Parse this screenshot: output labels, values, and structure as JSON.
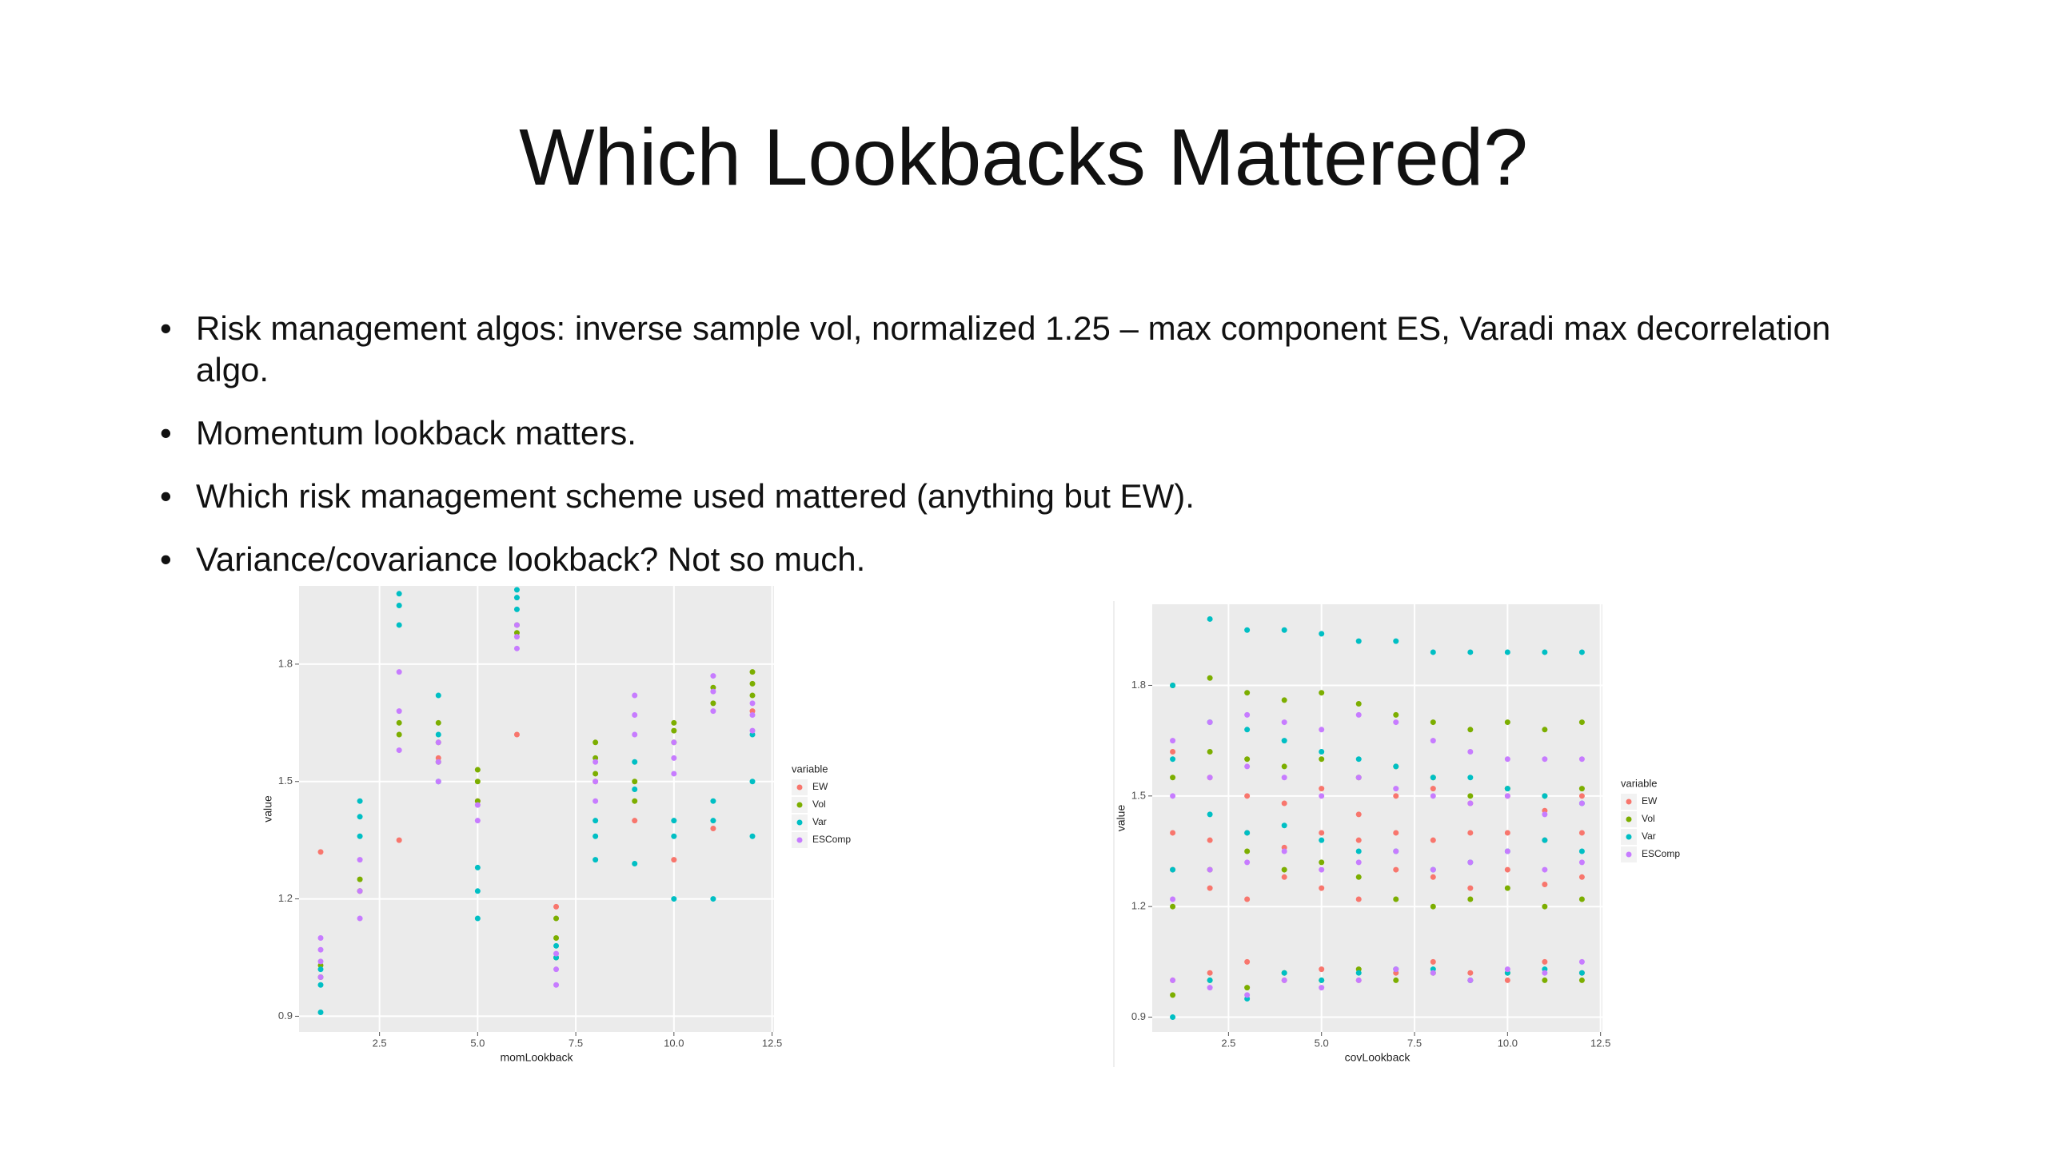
{
  "title": "Which Lookbacks Mattered?",
  "bullets": [
    "Risk management algos: inverse sample vol, normalized 1.25 – max component ES, Varadi max decorrelation algo.",
    "Momentum lookback matters.",
    "Which risk management scheme used mattered (anything but EW).",
    "Variance/covariance lookback? Not so much."
  ],
  "chart_data": [
    {
      "type": "scatter",
      "x_label": "momLookback",
      "y_label": "value",
      "legend_title": "variable",
      "xlim": [
        0.45,
        12.55
      ],
      "ylim": [
        0.86,
        2.0
      ],
      "xticks": [
        2.5,
        {
          "value": 5,
          "label": "5.0"
        },
        7.5,
        {
          "value": 10,
          "label": "10.0"
        },
        12.5
      ],
      "yticks": [
        0.9,
        1.2,
        1.5,
        1.8
      ],
      "grid": true,
      "series": [
        {
          "name": "EW",
          "color": "#F8766D",
          "x": [
            1,
            2,
            3,
            4,
            5,
            6,
            7,
            8,
            9,
            10,
            11,
            12
          ],
          "values": [
            1.32,
            1.22,
            1.35,
            1.56,
            1.45,
            1.62,
            1.18,
            1.5,
            1.4,
            1.3,
            1.38,
            1.68
          ]
        },
        {
          "name": "Vol",
          "color": "#7CAE00",
          "x": [
            1,
            1,
            2,
            2,
            3,
            3,
            4,
            4,
            4,
            5,
            5,
            5,
            6,
            6,
            7,
            7,
            7,
            8,
            8,
            8,
            9,
            9,
            10,
            10,
            10,
            11,
            11,
            12,
            12,
            12
          ],
          "values": [
            1.0,
            1.03,
            1.22,
            1.25,
            1.65,
            1.62,
            1.55,
            1.6,
            1.65,
            1.45,
            1.5,
            1.53,
            1.88,
            1.9,
            1.05,
            1.1,
            1.15,
            1.52,
            1.56,
            1.6,
            1.45,
            1.5,
            1.6,
            1.63,
            1.65,
            1.7,
            1.74,
            1.72,
            1.75,
            1.78
          ]
        },
        {
          "name": "Var",
          "color": "#00BFC4",
          "x": [
            1,
            1,
            1,
            2,
            2,
            2,
            3,
            3,
            3,
            4,
            4,
            4,
            5,
            5,
            5,
            6,
            6,
            6,
            7,
            7,
            8,
            8,
            8,
            9,
            9,
            9,
            10,
            10,
            10,
            11,
            11,
            11,
            12,
            12,
            12
          ],
          "values": [
            0.91,
            0.98,
            1.02,
            1.36,
            1.41,
            1.45,
            1.9,
            1.95,
            1.98,
            1.5,
            1.62,
            1.72,
            1.15,
            1.22,
            1.28,
            1.94,
            1.97,
            1.99,
            1.05,
            1.08,
            1.3,
            1.36,
            1.4,
            1.29,
            1.48,
            1.55,
            1.2,
            1.36,
            1.4,
            1.2,
            1.4,
            1.45,
            1.36,
            1.5,
            1.62
          ]
        },
        {
          "name": "ESComp",
          "color": "#C77CFF",
          "x": [
            1,
            1,
            1,
            1,
            2,
            2,
            2,
            3,
            3,
            3,
            4,
            4,
            4,
            5,
            5,
            6,
            6,
            6,
            7,
            7,
            7,
            8,
            8,
            8,
            9,
            9,
            9,
            10,
            10,
            10,
            11,
            11,
            11,
            12,
            12,
            12
          ],
          "values": [
            1.0,
            1.04,
            1.07,
            1.1,
            1.15,
            1.22,
            1.3,
            1.58,
            1.68,
            1.78,
            1.5,
            1.55,
            1.6,
            1.4,
            1.44,
            1.84,
            1.87,
            1.9,
            0.98,
            1.02,
            1.06,
            1.45,
            1.5,
            1.55,
            1.62,
            1.67,
            1.72,
            1.52,
            1.56,
            1.6,
            1.68,
            1.73,
            1.77,
            1.63,
            1.67,
            1.7
          ]
        }
      ]
    },
    {
      "type": "scatter",
      "x_label": "covLookback",
      "y_label": "value",
      "legend_title": "variable",
      "xlim": [
        0.45,
        12.55
      ],
      "ylim": [
        0.86,
        2.02
      ],
      "xticks": [
        2.5,
        {
          "value": 5,
          "label": "5.0"
        },
        7.5,
        {
          "value": 10,
          "label": "10.0"
        },
        12.5
      ],
      "yticks": [
        0.9,
        1.2,
        1.5,
        1.8
      ],
      "grid": true,
      "series": [
        {
          "name": "EW",
          "color": "#F8766D",
          "x": [
            1,
            1,
            1,
            1,
            2,
            2,
            2,
            2,
            3,
            3,
            3,
            3,
            4,
            4,
            4,
            4,
            5,
            5,
            5,
            5,
            6,
            6,
            6,
            6,
            7,
            7,
            7,
            7,
            8,
            8,
            8,
            8,
            9,
            9,
            9,
            9,
            10,
            10,
            10,
            10,
            11,
            11,
            11,
            11,
            12,
            12,
            12,
            12
          ],
          "values": [
            1.0,
            1.3,
            1.4,
            1.62,
            1.02,
            1.25,
            1.38,
            1.55,
            1.05,
            1.22,
            1.4,
            1.5,
            1.0,
            1.28,
            1.36,
            1.48,
            1.03,
            1.25,
            1.4,
            1.52,
            1.0,
            1.22,
            1.38,
            1.45,
            1.02,
            1.3,
            1.4,
            1.5,
            1.05,
            1.28,
            1.38,
            1.52,
            1.02,
            1.25,
            1.4,
            1.48,
            1.0,
            1.3,
            1.4,
            1.5,
            1.05,
            1.26,
            1.38,
            1.46,
            1.02,
            1.28,
            1.4,
            1.5
          ]
        },
        {
          "name": "Vol",
          "color": "#7CAE00",
          "x": [
            1,
            1,
            1,
            1,
            2,
            2,
            2,
            2,
            3,
            3,
            3,
            3,
            4,
            4,
            4,
            4,
            5,
            5,
            5,
            5,
            6,
            6,
            6,
            6,
            7,
            7,
            7,
            7,
            8,
            8,
            8,
            8,
            9,
            9,
            9,
            9,
            10,
            10,
            10,
            10,
            11,
            11,
            11,
            11,
            12,
            12,
            12,
            12
          ],
          "values": [
            0.96,
            1.2,
            1.55,
            1.8,
            1.0,
            1.3,
            1.62,
            1.82,
            0.98,
            1.35,
            1.6,
            1.78,
            1.02,
            1.3,
            1.58,
            1.76,
            1.0,
            1.32,
            1.6,
            1.78,
            1.03,
            1.28,
            1.55,
            1.75,
            1.0,
            1.22,
            1.58,
            1.72,
            1.02,
            1.2,
            1.55,
            1.7,
            1.0,
            1.22,
            1.5,
            1.68,
            1.02,
            1.25,
            1.52,
            1.7,
            1.0,
            1.2,
            1.5,
            1.68,
            1.0,
            1.22,
            1.52,
            1.7
          ]
        },
        {
          "name": "Var",
          "color": "#00BFC4",
          "x": [
            1,
            1,
            1,
            1,
            2,
            2,
            2,
            2,
            3,
            3,
            3,
            3,
            4,
            4,
            4,
            4,
            5,
            5,
            5,
            5,
            6,
            6,
            6,
            6,
            7,
            7,
            7,
            7,
            8,
            8,
            8,
            8,
            9,
            9,
            9,
            9,
            10,
            10,
            10,
            10,
            11,
            11,
            11,
            11,
            12,
            12,
            12,
            12
          ],
          "values": [
            0.9,
            1.3,
            1.6,
            1.8,
            1.0,
            1.45,
            1.7,
            1.98,
            0.95,
            1.4,
            1.68,
            1.95,
            1.02,
            1.42,
            1.65,
            1.95,
            1.0,
            1.38,
            1.62,
            1.94,
            1.02,
            1.35,
            1.6,
            1.92,
            1.03,
            1.35,
            1.58,
            1.92,
            1.03,
            1.3,
            1.55,
            1.89,
            1.0,
            1.32,
            1.55,
            1.89,
            1.02,
            1.35,
            1.52,
            1.89,
            1.03,
            1.38,
            1.5,
            1.89,
            1.02,
            1.35,
            1.48,
            1.89
          ]
        },
        {
          "name": "ESComp",
          "color": "#C77CFF",
          "x": [
            1,
            1,
            1,
            1,
            2,
            2,
            2,
            2,
            3,
            3,
            3,
            3,
            4,
            4,
            4,
            4,
            5,
            5,
            5,
            5,
            6,
            6,
            6,
            6,
            7,
            7,
            7,
            7,
            8,
            8,
            8,
            8,
            9,
            9,
            9,
            9,
            10,
            10,
            10,
            10,
            11,
            11,
            11,
            11,
            12,
            12,
            12,
            12
          ],
          "values": [
            1.0,
            1.22,
            1.5,
            1.65,
            0.98,
            1.3,
            1.55,
            1.7,
            0.96,
            1.32,
            1.58,
            1.72,
            1.0,
            1.35,
            1.55,
            1.7,
            0.98,
            1.3,
            1.5,
            1.68,
            1.0,
            1.32,
            1.55,
            1.72,
            1.03,
            1.35,
            1.52,
            1.7,
            1.02,
            1.3,
            1.5,
            1.65,
            1.0,
            1.32,
            1.48,
            1.62,
            1.03,
            1.35,
            1.5,
            1.6,
            1.02,
            1.3,
            1.45,
            1.6,
            1.05,
            1.32,
            1.48,
            1.6
          ]
        }
      ]
    }
  ]
}
